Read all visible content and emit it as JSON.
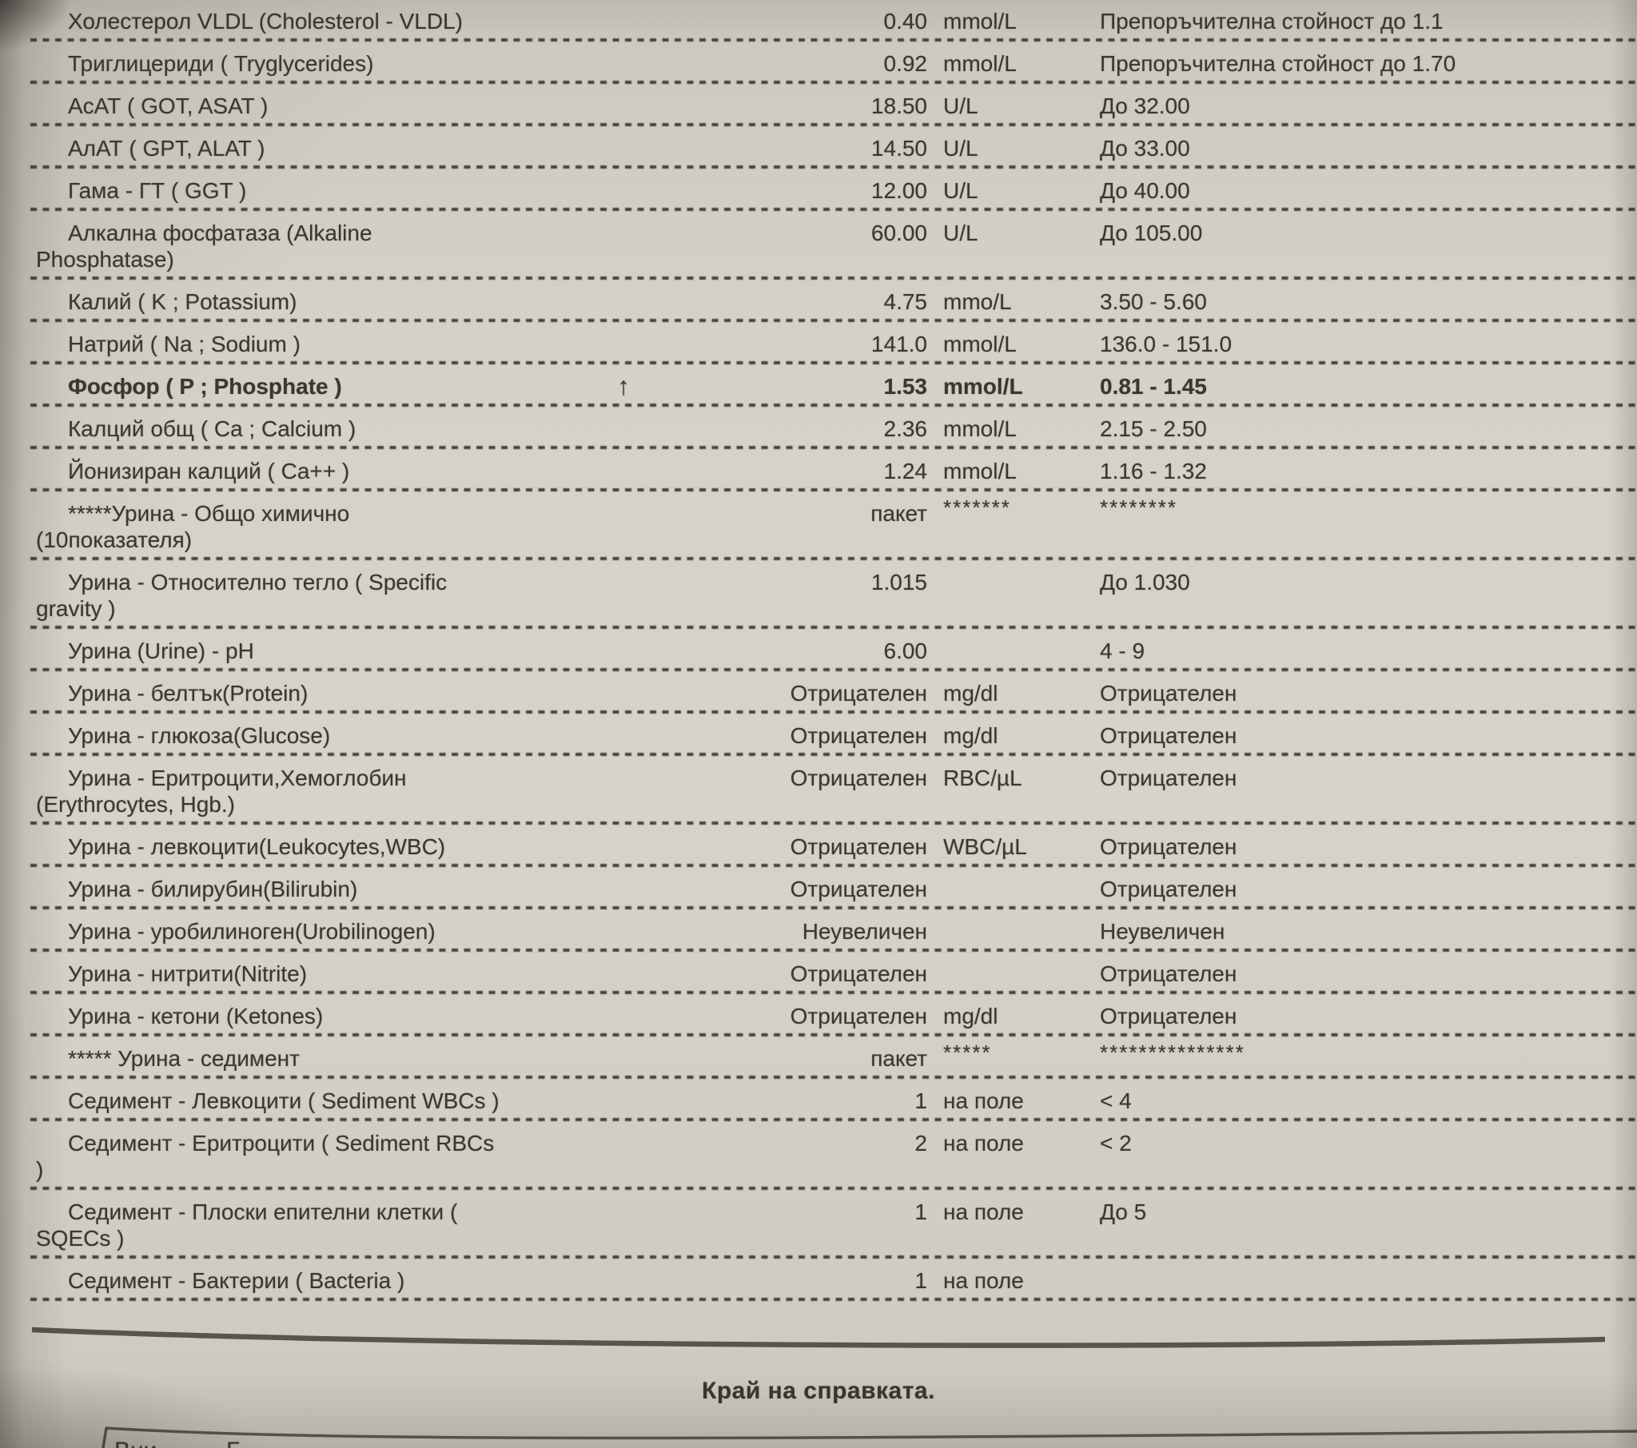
{
  "colors": {
    "paper": "#d4d0c7",
    "ink": "#3a3631",
    "rule": "#4b4741"
  },
  "footer": {
    "text": "Край на справката."
  },
  "bottom_box": {
    "fragment_left": "Вни",
    "fragment_right": "Б"
  },
  "table": {
    "rows": [
      {
        "name": "Холестерол VLDL (Cholesterol - VLDL)",
        "result": "0.40",
        "unit": "mmol/L",
        "reference": "Препоръчителна стойност до 1.1",
        "flag": "",
        "bold": false
      },
      {
        "name": "Триглицериди ( Tryglycerides)",
        "result": "0.92",
        "unit": "mmol/L",
        "reference": "Препоръчителна стойност до 1.70",
        "flag": "",
        "bold": false
      },
      {
        "name": "АсАТ ( GOT, ASAT )",
        "result": "18.50",
        "unit": "U/L",
        "reference": "До 32.00",
        "flag": "",
        "bold": false
      },
      {
        "name": "АлАТ ( GPT, ALAT )",
        "result": "14.50",
        "unit": "U/L",
        "reference": "До 33.00",
        "flag": "",
        "bold": false
      },
      {
        "name": "Гама - ГТ ( GGT )",
        "result": "12.00",
        "unit": "U/L",
        "reference": "До 40.00",
        "flag": "",
        "bold": false
      },
      {
        "name": "Алкална фосфатаза (Alkaline\nPhosphatase)",
        "result": "60.00",
        "unit": "U/L",
        "reference": "До 105.00",
        "flag": "",
        "bold": false
      },
      {
        "name": "Калий ( K ; Potassium)",
        "result": "4.75",
        "unit": "mmo/L",
        "reference": "3.50 - 5.60",
        "flag": "",
        "bold": false
      },
      {
        "name": "Натрий ( Na ; Sodium )",
        "result": "141.0",
        "unit": "mmol/L",
        "reference": "136.0 - 151.0",
        "flag": "",
        "bold": false
      },
      {
        "name": "Фосфор ( P ; Phosphate )",
        "result": "1.53",
        "unit": "mmol/L",
        "reference": "0.81 - 1.45",
        "flag": "↑",
        "bold": true
      },
      {
        "name": "Калций общ ( Ca ; Calcium )",
        "result": "2.36",
        "unit": "mmol/L",
        "reference": "2.15 - 2.50",
        "flag": "",
        "bold": false
      },
      {
        "name": "Йонизиран калций ( Ca++ )",
        "result": "1.24",
        "unit": "mmol/L",
        "reference": "1.16 - 1.32",
        "flag": "",
        "bold": false
      },
      {
        "name": "*****Урина - Общо химично\n(10показателя)",
        "result": "пакет",
        "unit": "*******",
        "reference": "********",
        "flag": "",
        "bold": false
      },
      {
        "name": "Урина - Относително тегло ( Specific\ngravity )",
        "result": "1.015",
        "unit": "",
        "reference": "До 1.030",
        "flag": "",
        "bold": false
      },
      {
        "name": "Урина (Urine) - pH",
        "result": "6.00",
        "unit": "",
        "reference": "4 - 9",
        "flag": "",
        "bold": false
      },
      {
        "name": "Урина - белтък(Protein)",
        "result": "Отрицателен",
        "unit": "mg/dl",
        "reference": "Отрицателен",
        "flag": "",
        "bold": false
      },
      {
        "name": "Урина - глюкоза(Glucose)",
        "result": "Отрицателен",
        "unit": "mg/dl",
        "reference": "Отрицателен",
        "flag": "",
        "bold": false
      },
      {
        "name": "Урина - Еритроцити,Хемоглобин\n(Erythrocytes, Hgb.)",
        "result": "Отрицателен",
        "unit": "RBC/µL",
        "reference": "Отрицателен",
        "flag": "",
        "bold": false
      },
      {
        "name": "Урина - левкоцити(Leukocytes,WBC)",
        "result": "Отрицателен",
        "unit": "WBC/µL",
        "reference": "Отрицателен",
        "flag": "",
        "bold": false
      },
      {
        "name": "Урина - билирубин(Bilirubin)",
        "result": "Отрицателен",
        "unit": "",
        "reference": "Отрицателен",
        "flag": "",
        "bold": false
      },
      {
        "name": "Урина - уробилиноген(Urobilinogen)",
        "result": "Неувеличен",
        "unit": "",
        "reference": "Неувеличен",
        "flag": "",
        "bold": false
      },
      {
        "name": "Урина - нитрити(Nitrite)",
        "result": "Отрицателен",
        "unit": "",
        "reference": "Отрицателен",
        "flag": "",
        "bold": false
      },
      {
        "name": "Урина - кетони (Ketones)",
        "result": "Отрицателен",
        "unit": "mg/dl",
        "reference": "Отрицателен",
        "flag": "",
        "bold": false
      },
      {
        "name": "***** Урина - седимент",
        "result": "пакет",
        "unit": "*****",
        "reference": "***************",
        "flag": "",
        "bold": false
      },
      {
        "name": "Седимент - Левкоцити ( Sediment WBCs )",
        "result": "1",
        "unit": "на поле",
        "reference": "< 4",
        "flag": "",
        "bold": false
      },
      {
        "name": "Седимент - Еритроцити ( Sediment RBCs\n)",
        "result": "2",
        "unit": "на поле",
        "reference": "< 2",
        "flag": "",
        "bold": false
      },
      {
        "name": "Седимент - Плоски епителни клетки (\nSQECs )",
        "result": "1",
        "unit": "на поле",
        "reference": "До 5",
        "flag": "",
        "bold": false
      },
      {
        "name": "Седимент - Бактерии ( Bacteria )",
        "result": "1",
        "unit": "на поле",
        "reference": "",
        "flag": "",
        "bold": false
      }
    ]
  }
}
